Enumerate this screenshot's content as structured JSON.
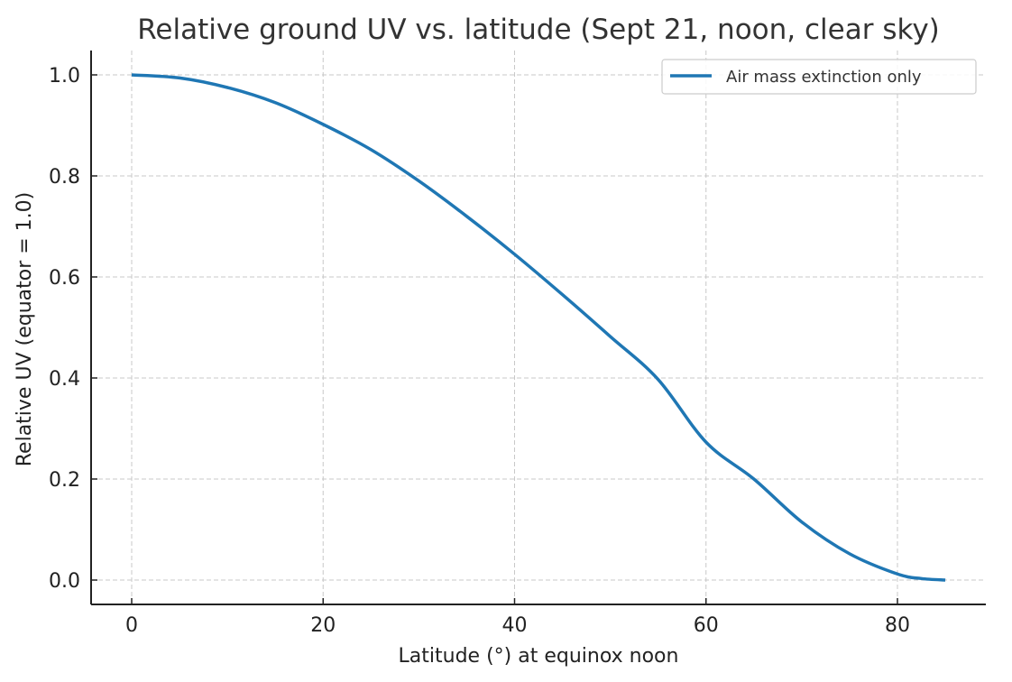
{
  "chart_data": {
    "type": "line",
    "title": "Relative ground UV vs. latitude (Sept 21, noon, clear sky)",
    "xlabel": "Latitude (°) at equinox noon",
    "ylabel": "Relative UV (equator = 1.0)",
    "xlim": [
      -4.2,
      89.2
    ],
    "ylim": [
      -0.05,
      1.05
    ],
    "x_ticks": [
      0,
      20,
      40,
      60,
      80
    ],
    "x_tick_labels": [
      "0",
      "20",
      "40",
      "60",
      "80"
    ],
    "y_ticks": [
      0.0,
      0.2,
      0.4,
      0.6,
      0.8,
      1.0
    ],
    "y_tick_labels": [
      "0.0",
      "0.2",
      "0.4",
      "0.6",
      "0.8",
      "1.0"
    ],
    "grid": true,
    "legend_position": "upper right",
    "series": [
      {
        "name": "Air mass extinction only",
        "color": "#1f77b4",
        "x": [
          0,
          5,
          10,
          15,
          20,
          25,
          30,
          35,
          40,
          45,
          50,
          55,
          60,
          65,
          70,
          75,
          80,
          82.5,
          85
        ],
        "values": [
          1.0,
          0.994,
          0.975,
          0.945,
          0.902,
          0.852,
          0.79,
          0.72,
          0.645,
          0.565,
          0.482,
          0.397,
          0.273,
          0.2,
          0.115,
          0.052,
          0.012,
          0.003,
          0.0
        ]
      }
    ]
  }
}
